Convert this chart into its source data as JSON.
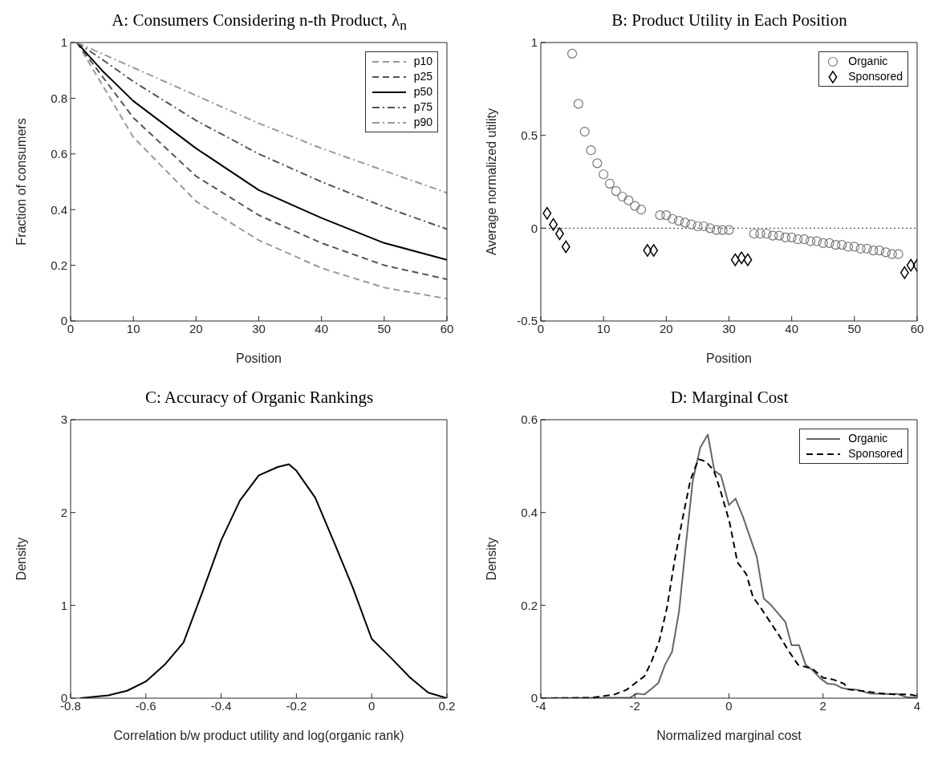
{
  "chart_data": [
    {
      "type": "line",
      "title": "A: Consumers Considering n-th Product, λ$_{n}$",
      "xlabel": "Position",
      "ylabel": "Fraction of consumers",
      "xlim": [
        0,
        60
      ],
      "xticks": [
        0,
        10,
        20,
        30,
        40,
        50,
        60
      ],
      "ylim": [
        0,
        1
      ],
      "yticks": [
        0,
        0.2,
        0.4,
        0.6,
        0.8,
        1
      ],
      "legend": "top right",
      "x": [
        1,
        5,
        10,
        20,
        30,
        40,
        50,
        60
      ],
      "series": [
        {
          "name": "p10",
          "color": "#999999",
          "line_style": "dashed",
          "values": [
            1,
            0.85,
            0.66,
            0.43,
            0.29,
            0.19,
            0.12,
            0.08
          ]
        },
        {
          "name": "p25",
          "color": "#555555",
          "line_style": "dashed",
          "values": [
            1,
            0.88,
            0.73,
            0.52,
            0.38,
            0.28,
            0.2,
            0.15
          ]
        },
        {
          "name": "p50",
          "color": "#000000",
          "line_style": "solid",
          "values": [
            1,
            0.9,
            0.79,
            0.62,
            0.47,
            0.37,
            0.28,
            0.22
          ]
        },
        {
          "name": "p75",
          "color": "#555555",
          "line_style": "dashdot",
          "values": [
            1,
            0.94,
            0.86,
            0.72,
            0.6,
            0.5,
            0.41,
            0.33
          ]
        },
        {
          "name": "p90",
          "color": "#999999",
          "line_style": "dashdot",
          "values": [
            1,
            0.96,
            0.91,
            0.81,
            0.71,
            0.62,
            0.54,
            0.46
          ]
        }
      ]
    },
    {
      "type": "scatter",
      "title": "B: Product Utility in Each Position",
      "xlabel": "Position",
      "ylabel": "Average normalized utility",
      "xlim": [
        0,
        60
      ],
      "xticks": [
        0,
        10,
        20,
        30,
        40,
        50,
        60
      ],
      "ylim": [
        -0.5,
        1
      ],
      "yticks": [
        -0.5,
        0,
        0.5,
        1
      ],
      "legend": "top right",
      "ref_lines": [
        {
          "axis": "y",
          "value": 0,
          "color": "#333333",
          "line_style": "dotted"
        }
      ],
      "series": [
        {
          "name": "Organic",
          "color": "#777777",
          "marker": "circle",
          "x": [
            5,
            6,
            7,
            8,
            9,
            10,
            11,
            12,
            13,
            14,
            15,
            16,
            19,
            20,
            21,
            22,
            23,
            24,
            25,
            26,
            27,
            28,
            29,
            30,
            34,
            35,
            36,
            37,
            38,
            39,
            40,
            41,
            42,
            43,
            44,
            45,
            46,
            47,
            48,
            49,
            50,
            51,
            52,
            53,
            54,
            55,
            56,
            57
          ],
          "values": [
            0.94,
            0.67,
            0.52,
            0.42,
            0.35,
            0.29,
            0.24,
            0.2,
            0.17,
            0.15,
            0.12,
            0.1,
            0.07,
            0.07,
            0.05,
            0.04,
            0.03,
            0.02,
            0.01,
            0.01,
            0,
            -0.01,
            -0.01,
            -0.01,
            -0.03,
            -0.03,
            -0.03,
            -0.04,
            -0.04,
            -0.05,
            -0.05,
            -0.06,
            -0.06,
            -0.07,
            -0.07,
            -0.08,
            -0.08,
            -0.09,
            -0.09,
            -0.1,
            -0.1,
            -0.11,
            -0.11,
            -0.12,
            -0.12,
            -0.13,
            -0.14,
            -0.14
          ]
        },
        {
          "name": "Sponsored",
          "color": "#000000",
          "marker": "diamond",
          "x": [
            1,
            2,
            3,
            4,
            17,
            18,
            31,
            32,
            33,
            58,
            59,
            60
          ],
          "values": [
            0.08,
            0.02,
            -0.03,
            -0.1,
            -0.12,
            -0.12,
            -0.17,
            -0.16,
            -0.17,
            -0.24,
            -0.2,
            -0.2
          ]
        }
      ]
    },
    {
      "type": "line",
      "title": "C: Accuracy of Organic Rankings",
      "xlabel": "Correlation b/w product utility and log(organic rank)",
      "ylabel": "Density",
      "xlim": [
        -0.8,
        0.2
      ],
      "xticks": [
        -0.8,
        -0.6,
        -0.4,
        -0.2,
        0,
        0.2
      ],
      "ylim": [
        0,
        3
      ],
      "yticks": [
        0,
        1,
        2,
        3
      ],
      "series": [
        {
          "color": "#000000",
          "x": [
            -0.775,
            -0.7,
            -0.65,
            -0.6,
            -0.55,
            -0.5,
            -0.45,
            -0.4,
            -0.35,
            -0.3,
            -0.25,
            -0.22,
            -0.2,
            -0.15,
            -0.1,
            -0.05,
            0,
            0.05,
            0.1,
            0.15,
            0.2
          ],
          "values": [
            0,
            0.03,
            0.08,
            0.18,
            0.36,
            0.6,
            1.14,
            1.7,
            2.13,
            2.4,
            2.49,
            2.52,
            2.45,
            2.16,
            1.68,
            1.19,
            0.64,
            0.44,
            0.23,
            0.06,
            0
          ]
        }
      ]
    },
    {
      "type": "line",
      "title": "D: Marginal Cost",
      "xlabel": "Normalized marginal cost",
      "ylabel": "Density",
      "xlim": [
        -4,
        4
      ],
      "xticks": [
        -4,
        -2,
        0,
        2,
        4
      ],
      "ylim": [
        0,
        0.6
      ],
      "yticks": [
        0,
        0.2,
        0.4,
        0.6
      ],
      "legend": "top right",
      "series": [
        {
          "name": "Organic",
          "color": "#666666",
          "line_style": "solid",
          "x": [
            -4,
            -2.1,
            -1.96,
            -1.8,
            -1.65,
            -1.5,
            -1.36,
            -1.21,
            -1.06,
            -0.93,
            -0.77,
            -0.61,
            -0.45,
            -0.31,
            -0.17,
            0,
            0.14,
            0.3,
            0.59,
            0.74,
            0.9,
            1.2,
            1.33,
            1.49,
            1.63,
            1.78,
            1.94,
            2.1,
            2.25,
            2.4,
            2.56,
            2.73,
            3,
            3.28,
            3.58,
            3.78,
            4
          ],
          "values": [
            0,
            0.001,
            0.01,
            0.008,
            0.02,
            0.033,
            0.072,
            0.1,
            0.188,
            0.317,
            0.468,
            0.54,
            0.568,
            0.49,
            0.48,
            0.416,
            0.43,
            0.39,
            0.305,
            0.215,
            0.2,
            0.164,
            0.114,
            0.114,
            0.072,
            0.06,
            0.043,
            0.031,
            0.03,
            0.022,
            0.019,
            0.018,
            0.01,
            0.009,
            0.009,
            0.002,
            0.001
          ]
        },
        {
          "name": "Sponsored",
          "color": "#000000",
          "line_style": "dashed",
          "x": [
            -4,
            -2.92,
            -2.43,
            -2.18,
            -1.8,
            -1.65,
            -1.48,
            -1.32,
            -1.15,
            -0.98,
            -0.82,
            -0.65,
            -0.49,
            -0.32,
            -0.16,
            0.01,
            0.18,
            0.37,
            0.51,
            0.68,
            0.87,
            1.06,
            1.28,
            1.47,
            1.78,
            2,
            2.22,
            2.45,
            2.53,
            2.89,
            3.17,
            3.5,
            3.83,
            4
          ],
          "values": [
            0,
            0.001,
            0.008,
            0.018,
            0.047,
            0.078,
            0.124,
            0.194,
            0.3,
            0.39,
            0.47,
            0.515,
            0.51,
            0.49,
            0.44,
            0.38,
            0.293,
            0.267,
            0.218,
            0.194,
            0.165,
            0.136,
            0.1,
            0.072,
            0.063,
            0.044,
            0.04,
            0.031,
            0.019,
            0.015,
            0.011,
            0.008,
            0.008,
            0.005
          ]
        }
      ]
    }
  ]
}
